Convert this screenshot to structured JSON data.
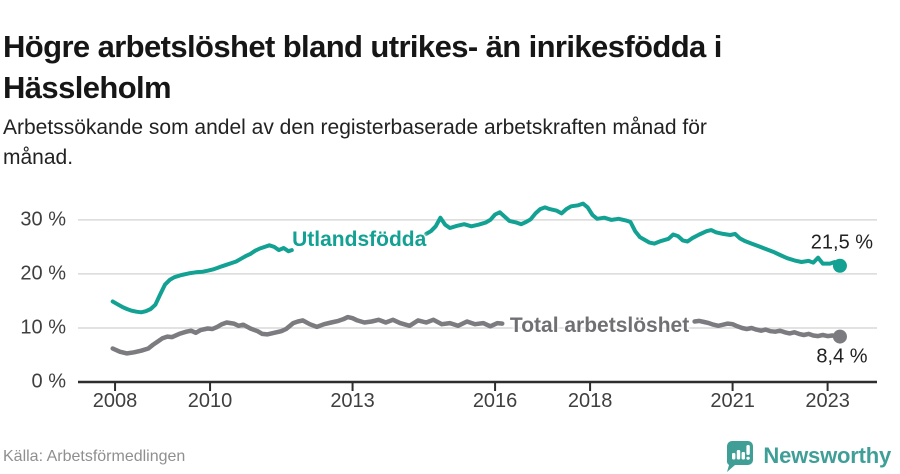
{
  "header": {
    "title": "Högre arbetslöshet bland utrikes- än inrikesfödda i Hässleholm",
    "subtitle": "Arbetssökande som andel av den registerbaserade arbetskraften månad för månad."
  },
  "footer": {
    "source": "Källa: Arbetsförmedlingen",
    "brand_name": "Newsworthy",
    "brand_icon": "speech-bubble-bar-chart-icon"
  },
  "colors": {
    "title_text": "#161616",
    "subtitle_text": "#222222",
    "accent_teal": "#12a192",
    "line_gray": "#7b7b80",
    "label_gray": "#6f6f74",
    "grid": "#d9d9d9",
    "axis": "#2e2e2e",
    "tick_text": "#3f3f3f",
    "value_text": "#222222",
    "source_text": "#8f8f8f",
    "brand_teal": "#3f9f97"
  },
  "chart_data": {
    "type": "line",
    "title": "Högre arbetslöshet bland utrikes- än inrikesfödda i Hässleholm",
    "subtitle": "Arbetssökande som andel av den registerbaserade arbetskraften månad för månad.",
    "source": "Källa: Arbetsförmedlingen",
    "grid": "horizontal",
    "legend_position": "inline-on-line",
    "x_axis": {
      "range": [
        2007.22,
        2024.04
      ],
      "ticks": [
        2008,
        2010,
        2013,
        2016,
        2018,
        2021,
        2023
      ]
    },
    "y_axis": {
      "range": [
        0,
        34.6
      ],
      "unit": "%",
      "tick_values": [
        0,
        10,
        20,
        30
      ],
      "tick_labels": [
        "0 %",
        "10 %",
        "20 %",
        "30 %"
      ]
    },
    "series": [
      {
        "name": "Utlandsfödda",
        "color": "#12a192",
        "label_color": "#12a192",
        "stroke_width": 4,
        "end_value": 21.5,
        "end_label": "21,5 %",
        "end_label_position": "above",
        "label_anchor": {
          "x": 2013.14,
          "y": 26.2
        },
        "segments": [
          [
            [
              2007.95,
              14.9
            ],
            [
              2008.05,
              14.4
            ],
            [
              2008.15,
              13.9
            ],
            [
              2008.25,
              13.5
            ],
            [
              2008.35,
              13.2
            ],
            [
              2008.45,
              13.0
            ],
            [
              2008.55,
              12.9
            ],
            [
              2008.65,
              13.1
            ],
            [
              2008.75,
              13.5
            ],
            [
              2008.85,
              14.3
            ],
            [
              2008.95,
              16.2
            ],
            [
              2009.05,
              18.0
            ],
            [
              2009.15,
              18.9
            ],
            [
              2009.25,
              19.4
            ],
            [
              2009.4,
              19.8
            ],
            [
              2009.55,
              20.1
            ],
            [
              2009.7,
              20.3
            ],
            [
              2009.85,
              20.4
            ],
            [
              2009.95,
              20.6
            ],
            [
              2010.05,
              20.8
            ],
            [
              2010.15,
              21.1
            ],
            [
              2010.25,
              21.4
            ],
            [
              2010.35,
              21.7
            ],
            [
              2010.45,
              22.0
            ],
            [
              2010.55,
              22.3
            ],
            [
              2010.65,
              22.8
            ],
            [
              2010.75,
              23.3
            ],
            [
              2010.85,
              23.7
            ],
            [
              2010.95,
              24.3
            ],
            [
              2011.05,
              24.7
            ],
            [
              2011.15,
              25.0
            ],
            [
              2011.25,
              25.3
            ],
            [
              2011.35,
              25.0
            ],
            [
              2011.45,
              24.4
            ],
            [
              2011.55,
              24.8
            ],
            [
              2011.65,
              24.2
            ],
            [
              2011.72,
              24.4
            ]
          ],
          [
            [
              2014.55,
              27.4
            ],
            [
              2014.65,
              27.9
            ],
            [
              2014.75,
              28.8
            ],
            [
              2014.85,
              30.4
            ],
            [
              2014.95,
              29.1
            ],
            [
              2015.05,
              28.5
            ],
            [
              2015.2,
              28.9
            ],
            [
              2015.35,
              29.2
            ],
            [
              2015.5,
              28.8
            ],
            [
              2015.65,
              29.1
            ],
            [
              2015.8,
              29.5
            ],
            [
              2015.9,
              30.0
            ],
            [
              2016.0,
              31.0
            ],
            [
              2016.1,
              31.4
            ],
            [
              2016.2,
              30.6
            ],
            [
              2016.3,
              29.8
            ],
            [
              2016.45,
              29.5
            ],
            [
              2016.55,
              29.2
            ],
            [
              2016.65,
              29.6
            ],
            [
              2016.75,
              30.1
            ],
            [
              2016.85,
              31.2
            ],
            [
              2016.95,
              32.0
            ],
            [
              2017.05,
              32.3
            ],
            [
              2017.15,
              32.0
            ],
            [
              2017.3,
              31.7
            ],
            [
              2017.4,
              31.2
            ],
            [
              2017.5,
              32.0
            ],
            [
              2017.6,
              32.5
            ],
            [
              2017.75,
              32.7
            ],
            [
              2017.85,
              33.0
            ],
            [
              2017.95,
              32.3
            ],
            [
              2018.05,
              30.9
            ],
            [
              2018.15,
              30.2
            ],
            [
              2018.3,
              30.4
            ],
            [
              2018.45,
              30.0
            ],
            [
              2018.6,
              30.2
            ],
            [
              2018.75,
              29.9
            ],
            [
              2018.85,
              29.6
            ],
            [
              2018.95,
              27.9
            ],
            [
              2019.05,
              26.8
            ],
            [
              2019.15,
              26.3
            ],
            [
              2019.25,
              25.8
            ],
            [
              2019.35,
              25.6
            ],
            [
              2019.5,
              26.1
            ],
            [
              2019.65,
              26.5
            ],
            [
              2019.75,
              27.3
            ],
            [
              2019.85,
              27.0
            ],
            [
              2019.95,
              26.2
            ],
            [
              2020.05,
              26.0
            ],
            [
              2020.15,
              26.6
            ],
            [
              2020.3,
              27.3
            ],
            [
              2020.45,
              27.9
            ],
            [
              2020.55,
              28.1
            ],
            [
              2020.65,
              27.7
            ],
            [
              2020.8,
              27.4
            ],
            [
              2020.95,
              27.2
            ],
            [
              2021.05,
              27.4
            ],
            [
              2021.15,
              26.6
            ],
            [
              2021.25,
              26.1
            ],
            [
              2021.4,
              25.6
            ],
            [
              2021.55,
              25.1
            ],
            [
              2021.7,
              24.6
            ],
            [
              2021.85,
              24.1
            ],
            [
              2022.0,
              23.5
            ],
            [
              2022.15,
              22.9
            ],
            [
              2022.3,
              22.5
            ],
            [
              2022.45,
              22.2
            ],
            [
              2022.6,
              22.4
            ],
            [
              2022.7,
              22.1
            ],
            [
              2022.8,
              23.0
            ],
            [
              2022.9,
              21.9
            ],
            [
              2023.05,
              21.9
            ],
            [
              2023.15,
              22.2
            ],
            [
              2023.26,
              21.5
            ]
          ]
        ]
      },
      {
        "name": "Total arbetslöshet",
        "color": "#7b7b80",
        "label_color": "#6f6f74",
        "stroke_width": 4.5,
        "end_value": 8.4,
        "end_label": "8,4 %",
        "end_label_position": "below",
        "label_anchor": {
          "x": 2018.2,
          "y": 10.35
        },
        "segments": [
          [
            [
              2007.95,
              6.2
            ],
            [
              2008.1,
              5.6
            ],
            [
              2008.25,
              5.3
            ],
            [
              2008.4,
              5.5
            ],
            [
              2008.55,
              5.8
            ],
            [
              2008.7,
              6.2
            ],
            [
              2008.8,
              6.9
            ],
            [
              2008.9,
              7.5
            ],
            [
              2009.0,
              8.1
            ],
            [
              2009.1,
              8.4
            ],
            [
              2009.2,
              8.3
            ],
            [
              2009.35,
              8.9
            ],
            [
              2009.5,
              9.3
            ],
            [
              2009.6,
              9.5
            ],
            [
              2009.7,
              9.1
            ],
            [
              2009.8,
              9.6
            ],
            [
              2009.95,
              9.9
            ],
            [
              2010.05,
              9.8
            ],
            [
              2010.15,
              10.2
            ],
            [
              2010.25,
              10.7
            ],
            [
              2010.35,
              11.0
            ],
            [
              2010.5,
              10.8
            ],
            [
              2010.6,
              10.4
            ],
            [
              2010.7,
              10.6
            ],
            [
              2010.85,
              9.9
            ],
            [
              2011.0,
              9.4
            ],
            [
              2011.1,
              8.9
            ],
            [
              2011.2,
              8.8
            ],
            [
              2011.35,
              9.1
            ],
            [
              2011.5,
              9.4
            ],
            [
              2011.6,
              9.8
            ],
            [
              2011.75,
              10.9
            ],
            [
              2011.85,
              11.2
            ],
            [
              2011.95,
              11.4
            ],
            [
              2012.1,
              10.7
            ],
            [
              2012.25,
              10.2
            ],
            [
              2012.4,
              10.7
            ],
            [
              2012.55,
              11.0
            ],
            [
              2012.7,
              11.3
            ],
            [
              2012.8,
              11.6
            ],
            [
              2012.9,
              12.0
            ],
            [
              2013.0,
              11.8
            ],
            [
              2013.1,
              11.4
            ],
            [
              2013.25,
              11.0
            ],
            [
              2013.4,
              11.2
            ],
            [
              2013.55,
              11.5
            ],
            [
              2013.7,
              11.0
            ],
            [
              2013.85,
              11.5
            ],
            [
              2014.0,
              10.9
            ],
            [
              2014.2,
              10.4
            ],
            [
              2014.38,
              11.4
            ],
            [
              2014.55,
              11.0
            ],
            [
              2014.7,
              11.5
            ],
            [
              2014.88,
              10.7
            ],
            [
              2015.05,
              10.9
            ],
            [
              2015.22,
              10.4
            ],
            [
              2015.41,
              11.2
            ],
            [
              2015.58,
              10.7
            ],
            [
              2015.75,
              10.9
            ],
            [
              2015.9,
              10.3
            ],
            [
              2016.05,
              10.9
            ],
            [
              2016.15,
              10.8
            ]
          ],
          [
            [
              2020.2,
              11.2
            ],
            [
              2020.3,
              11.3
            ],
            [
              2020.4,
              11.1
            ],
            [
              2020.5,
              10.9
            ],
            [
              2020.6,
              10.6
            ],
            [
              2020.7,
              10.4
            ],
            [
              2020.8,
              10.6
            ],
            [
              2020.9,
              10.8
            ],
            [
              2021.0,
              10.7
            ],
            [
              2021.1,
              10.3
            ],
            [
              2021.2,
              10.0
            ],
            [
              2021.3,
              9.8
            ],
            [
              2021.4,
              10.0
            ],
            [
              2021.5,
              9.7
            ],
            [
              2021.6,
              9.5
            ],
            [
              2021.7,
              9.7
            ],
            [
              2021.8,
              9.4
            ],
            [
              2021.9,
              9.3
            ],
            [
              2022.0,
              9.5
            ],
            [
              2022.1,
              9.2
            ],
            [
              2022.2,
              9.0
            ],
            [
              2022.3,
              9.2
            ],
            [
              2022.4,
              8.9
            ],
            [
              2022.5,
              8.7
            ],
            [
              2022.6,
              8.9
            ],
            [
              2022.7,
              8.6
            ],
            [
              2022.8,
              8.5
            ],
            [
              2022.9,
              8.7
            ],
            [
              2023.0,
              8.5
            ],
            [
              2023.1,
              8.6
            ],
            [
              2023.26,
              8.4
            ]
          ]
        ]
      }
    ]
  }
}
